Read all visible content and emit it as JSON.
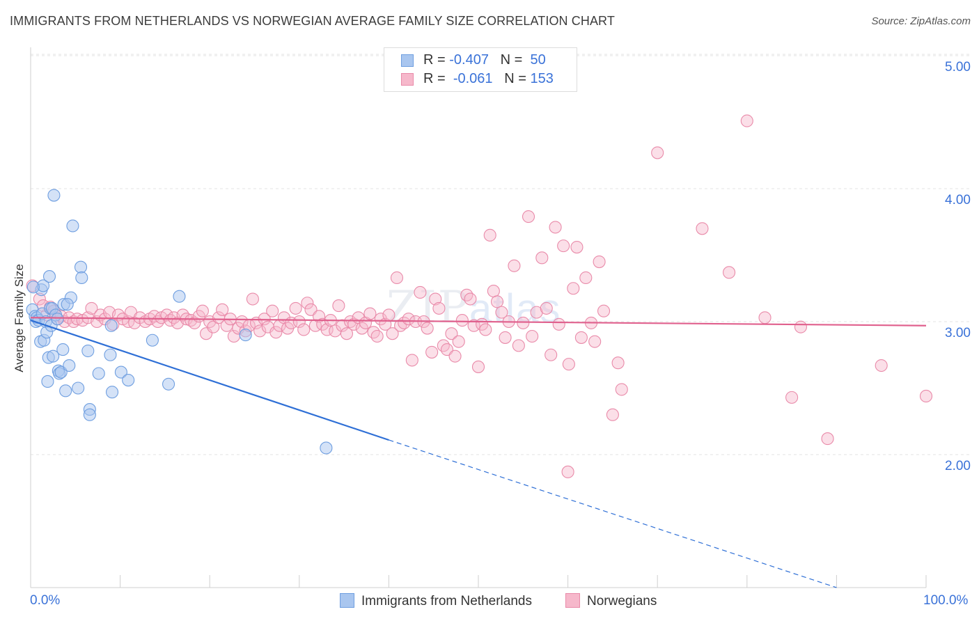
{
  "title": "IMMIGRANTS FROM NETHERLANDS VS NORWEGIAN AVERAGE FAMILY SIZE CORRELATION CHART",
  "source": "Source: ZipAtlas.com",
  "watermark": {
    "zip": "ZIP",
    "atlas": "atlas"
  },
  "legend_top": [
    {
      "r_label": "R = ",
      "r_value": "-0.407",
      "n_label": "N = ",
      "n_value": "50"
    },
    {
      "r_label": "R = ",
      "r_value": "-0.061",
      "n_label": "N = ",
      "n_value": "153"
    }
  ],
  "colors": {
    "blue_fill": "#a9c6ef",
    "blue_stroke": "#6e9ee0",
    "blue_line": "#2e6fd6",
    "pink_fill": "#f6b8cb",
    "pink_stroke": "#e98aa9",
    "pink_line": "#e0608d",
    "tick_text": "#3a72d8",
    "grid": "#e3e3e3"
  },
  "chart_data": {
    "type": "scatter",
    "title": "IMMIGRANTS FROM NETHERLANDS VS NORWEGIAN AVERAGE FAMILY SIZE CORRELATION CHART",
    "xlabel": "",
    "ylabel": "Average Family Size",
    "xlim": [
      0,
      100
    ],
    "ylim": [
      1.0,
      5.15
    ],
    "x_tick_labels": [
      "0.0%",
      "100.0%"
    ],
    "y_ticks": [
      2.0,
      3.0,
      4.0,
      5.0
    ],
    "y_tick_labels": [
      "2.00",
      "3.00",
      "4.00",
      "5.00"
    ],
    "grid": true,
    "legend_position": "bottom",
    "series": [
      {
        "name": "Immigrants from Netherlands",
        "color": "#a9c6ef",
        "r": -0.407,
        "n": 50,
        "trend": {
          "x0": 0,
          "y0": 3.01,
          "x1": 40,
          "y1": 2.11,
          "dashed_to_x": 90,
          "dashed_y": 1.0
        },
        "points": [
          [
            0.2,
            3.09
          ],
          [
            0.5,
            3.04
          ],
          [
            0.6,
            3.0
          ],
          [
            0.7,
            3.03
          ],
          [
            0.9,
            3.01
          ],
          [
            1.1,
            2.85
          ],
          [
            1.2,
            3.24
          ],
          [
            1.3,
            3.06
          ],
          [
            1.4,
            3.27
          ],
          [
            1.5,
            2.86
          ],
          [
            1.7,
            3.0
          ],
          [
            1.8,
            2.92
          ],
          [
            1.9,
            2.55
          ],
          [
            2.0,
            2.73
          ],
          [
            2.1,
            3.34
          ],
          [
            2.2,
            3.1
          ],
          [
            2.3,
            2.97
          ],
          [
            2.4,
            3.1
          ],
          [
            2.5,
            2.74
          ],
          [
            2.6,
            3.95
          ],
          [
            2.8,
            3.05
          ],
          [
            3.0,
            3.02
          ],
          [
            3.1,
            2.63
          ],
          [
            3.2,
            2.61
          ],
          [
            3.4,
            2.62
          ],
          [
            3.6,
            2.79
          ],
          [
            3.7,
            3.13
          ],
          [
            3.9,
            2.48
          ],
          [
            4.3,
            2.67
          ],
          [
            4.5,
            3.18
          ],
          [
            4.7,
            3.72
          ],
          [
            5.3,
            2.5
          ],
          [
            5.6,
            3.41
          ],
          [
            5.7,
            3.33
          ],
          [
            6.4,
            2.78
          ],
          [
            6.6,
            2.34
          ],
          [
            6.6,
            2.3
          ],
          [
            7.6,
            2.61
          ],
          [
            8.9,
            2.75
          ],
          [
            9.0,
            2.97
          ],
          [
            9.1,
            2.47
          ],
          [
            10.1,
            2.62
          ],
          [
            10.9,
            2.56
          ],
          [
            13.6,
            2.86
          ],
          [
            15.4,
            2.53
          ],
          [
            16.6,
            3.19
          ],
          [
            24.0,
            2.9
          ],
          [
            33.0,
            2.05
          ],
          [
            4.1,
            3.13
          ],
          [
            0.3,
            3.26
          ]
        ]
      },
      {
        "name": "Norwegians",
        "color": "#f6b8cb",
        "r": -0.061,
        "n": 153,
        "trend": {
          "x0": 0,
          "y0": 3.03,
          "x1": 100,
          "y1": 2.97
        },
        "points": [
          [
            0.2,
            3.27
          ],
          [
            1.0,
            3.17
          ],
          [
            1.4,
            3.12
          ],
          [
            1.8,
            3.05
          ],
          [
            2.2,
            3.11
          ],
          [
            2.6,
            3.08
          ],
          [
            3.0,
            3.02
          ],
          [
            3.4,
            3.04
          ],
          [
            3.8,
            3.0
          ],
          [
            4.3,
            3.03
          ],
          [
            4.8,
            3.0
          ],
          [
            5.2,
            3.02
          ],
          [
            5.8,
            3.01
          ],
          [
            6.4,
            3.03
          ],
          [
            6.8,
            3.1
          ],
          [
            7.4,
            3.0
          ],
          [
            7.8,
            3.05
          ],
          [
            8.3,
            3.02
          ],
          [
            8.8,
            3.07
          ],
          [
            9.2,
            2.98
          ],
          [
            9.8,
            3.05
          ],
          [
            10.3,
            3.02
          ],
          [
            10.9,
            3.0
          ],
          [
            11.2,
            3.07
          ],
          [
            11.6,
            2.99
          ],
          [
            12.2,
            3.03
          ],
          [
            12.8,
            3.0
          ],
          [
            13.3,
            3.02
          ],
          [
            13.8,
            3.04
          ],
          [
            14.2,
            3.0
          ],
          [
            14.6,
            3.03
          ],
          [
            15.2,
            3.05
          ],
          [
            15.6,
            3.01
          ],
          [
            16.0,
            3.03
          ],
          [
            16.4,
            2.99
          ],
          [
            17.0,
            3.05
          ],
          [
            17.4,
            3.02
          ],
          [
            17.9,
            3.01
          ],
          [
            18.3,
            2.99
          ],
          [
            18.8,
            3.04
          ],
          [
            19.2,
            3.08
          ],
          [
            19.6,
            2.91
          ],
          [
            20.0,
            3.0
          ],
          [
            20.4,
            2.96
          ],
          [
            21.0,
            3.03
          ],
          [
            21.4,
            3.09
          ],
          [
            21.9,
            2.97
          ],
          [
            22.3,
            3.02
          ],
          [
            22.7,
            2.89
          ],
          [
            23.2,
            2.95
          ],
          [
            23.6,
            3.0
          ],
          [
            24.0,
            2.93
          ],
          [
            24.4,
            2.97
          ],
          [
            24.8,
            3.17
          ],
          [
            25.2,
            2.99
          ],
          [
            25.6,
            2.93
          ],
          [
            26.1,
            3.02
          ],
          [
            26.5,
            2.96
          ],
          [
            27.0,
            3.08
          ],
          [
            27.4,
            2.92
          ],
          [
            27.8,
            2.97
          ],
          [
            28.3,
            3.03
          ],
          [
            28.7,
            2.95
          ],
          [
            29.1,
            2.99
          ],
          [
            29.6,
            3.1
          ],
          [
            30.0,
            3.0
          ],
          [
            30.5,
            2.94
          ],
          [
            30.9,
            3.14
          ],
          [
            31.3,
            3.09
          ],
          [
            31.8,
            2.97
          ],
          [
            32.2,
            3.04
          ],
          [
            32.6,
            2.98
          ],
          [
            33.1,
            2.94
          ],
          [
            33.5,
            3.01
          ],
          [
            34.0,
            2.93
          ],
          [
            34.4,
            3.12
          ],
          [
            34.8,
            2.97
          ],
          [
            35.3,
            2.91
          ],
          [
            35.7,
            3.0
          ],
          [
            36.1,
            2.98
          ],
          [
            36.6,
            3.03
          ],
          [
            37.0,
            2.95
          ],
          [
            37.4,
            2.99
          ],
          [
            37.9,
            3.06
          ],
          [
            38.3,
            2.92
          ],
          [
            38.7,
            2.89
          ],
          [
            39.1,
            3.02
          ],
          [
            39.6,
            2.98
          ],
          [
            40.0,
            3.05
          ],
          [
            40.4,
            2.91
          ],
          [
            40.9,
            3.33
          ],
          [
            41.3,
            2.97
          ],
          [
            41.7,
            2.99
          ],
          [
            42.2,
            3.02
          ],
          [
            42.6,
            2.71
          ],
          [
            43.0,
            3.0
          ],
          [
            43.5,
            3.22
          ],
          [
            43.9,
            3.0
          ],
          [
            44.3,
            2.95
          ],
          [
            44.8,
            2.77
          ],
          [
            45.2,
            3.17
          ],
          [
            45.6,
            3.1
          ],
          [
            46.1,
            2.82
          ],
          [
            46.5,
            2.79
          ],
          [
            47.0,
            2.91
          ],
          [
            47.4,
            2.74
          ],
          [
            47.8,
            2.85
          ],
          [
            48.2,
            3.01
          ],
          [
            48.7,
            3.2
          ],
          [
            49.1,
            3.17
          ],
          [
            49.5,
            2.97
          ],
          [
            50.0,
            2.66
          ],
          [
            50.4,
            2.98
          ],
          [
            50.8,
            2.94
          ],
          [
            51.3,
            3.65
          ],
          [
            51.7,
            3.23
          ],
          [
            52.1,
            3.15
          ],
          [
            52.6,
            3.07
          ],
          [
            53.0,
            2.88
          ],
          [
            53.4,
            3.0
          ],
          [
            54.0,
            3.42
          ],
          [
            54.5,
            2.82
          ],
          [
            55.0,
            2.99
          ],
          [
            55.6,
            3.79
          ],
          [
            56.0,
            2.89
          ],
          [
            56.5,
            3.07
          ],
          [
            57.1,
            3.48
          ],
          [
            57.6,
            3.1
          ],
          [
            58.1,
            2.75
          ],
          [
            58.6,
            3.71
          ],
          [
            59.0,
            2.98
          ],
          [
            59.5,
            3.57
          ],
          [
            60.1,
            2.68
          ],
          [
            60.6,
            3.25
          ],
          [
            61.0,
            3.56
          ],
          [
            61.5,
            2.88
          ],
          [
            62.0,
            3.33
          ],
          [
            62.6,
            2.99
          ],
          [
            63.0,
            2.85
          ],
          [
            63.5,
            3.45
          ],
          [
            64.0,
            3.08
          ],
          [
            65.0,
            2.3
          ],
          [
            65.6,
            2.69
          ],
          [
            66.0,
            2.49
          ],
          [
            70.0,
            4.27
          ],
          [
            75.0,
            3.7
          ],
          [
            78.0,
            3.37
          ],
          [
            80.0,
            4.51
          ],
          [
            82.0,
            3.03
          ],
          [
            85.0,
            2.43
          ],
          [
            86.0,
            2.96
          ],
          [
            89.0,
            2.12
          ],
          [
            95.0,
            2.67
          ],
          [
            100.0,
            2.44
          ],
          [
            60.0,
            1.87
          ]
        ]
      }
    ]
  },
  "legend_bottom": [
    {
      "label": "Immigrants from Netherlands"
    },
    {
      "label": "Norwegians"
    }
  ]
}
